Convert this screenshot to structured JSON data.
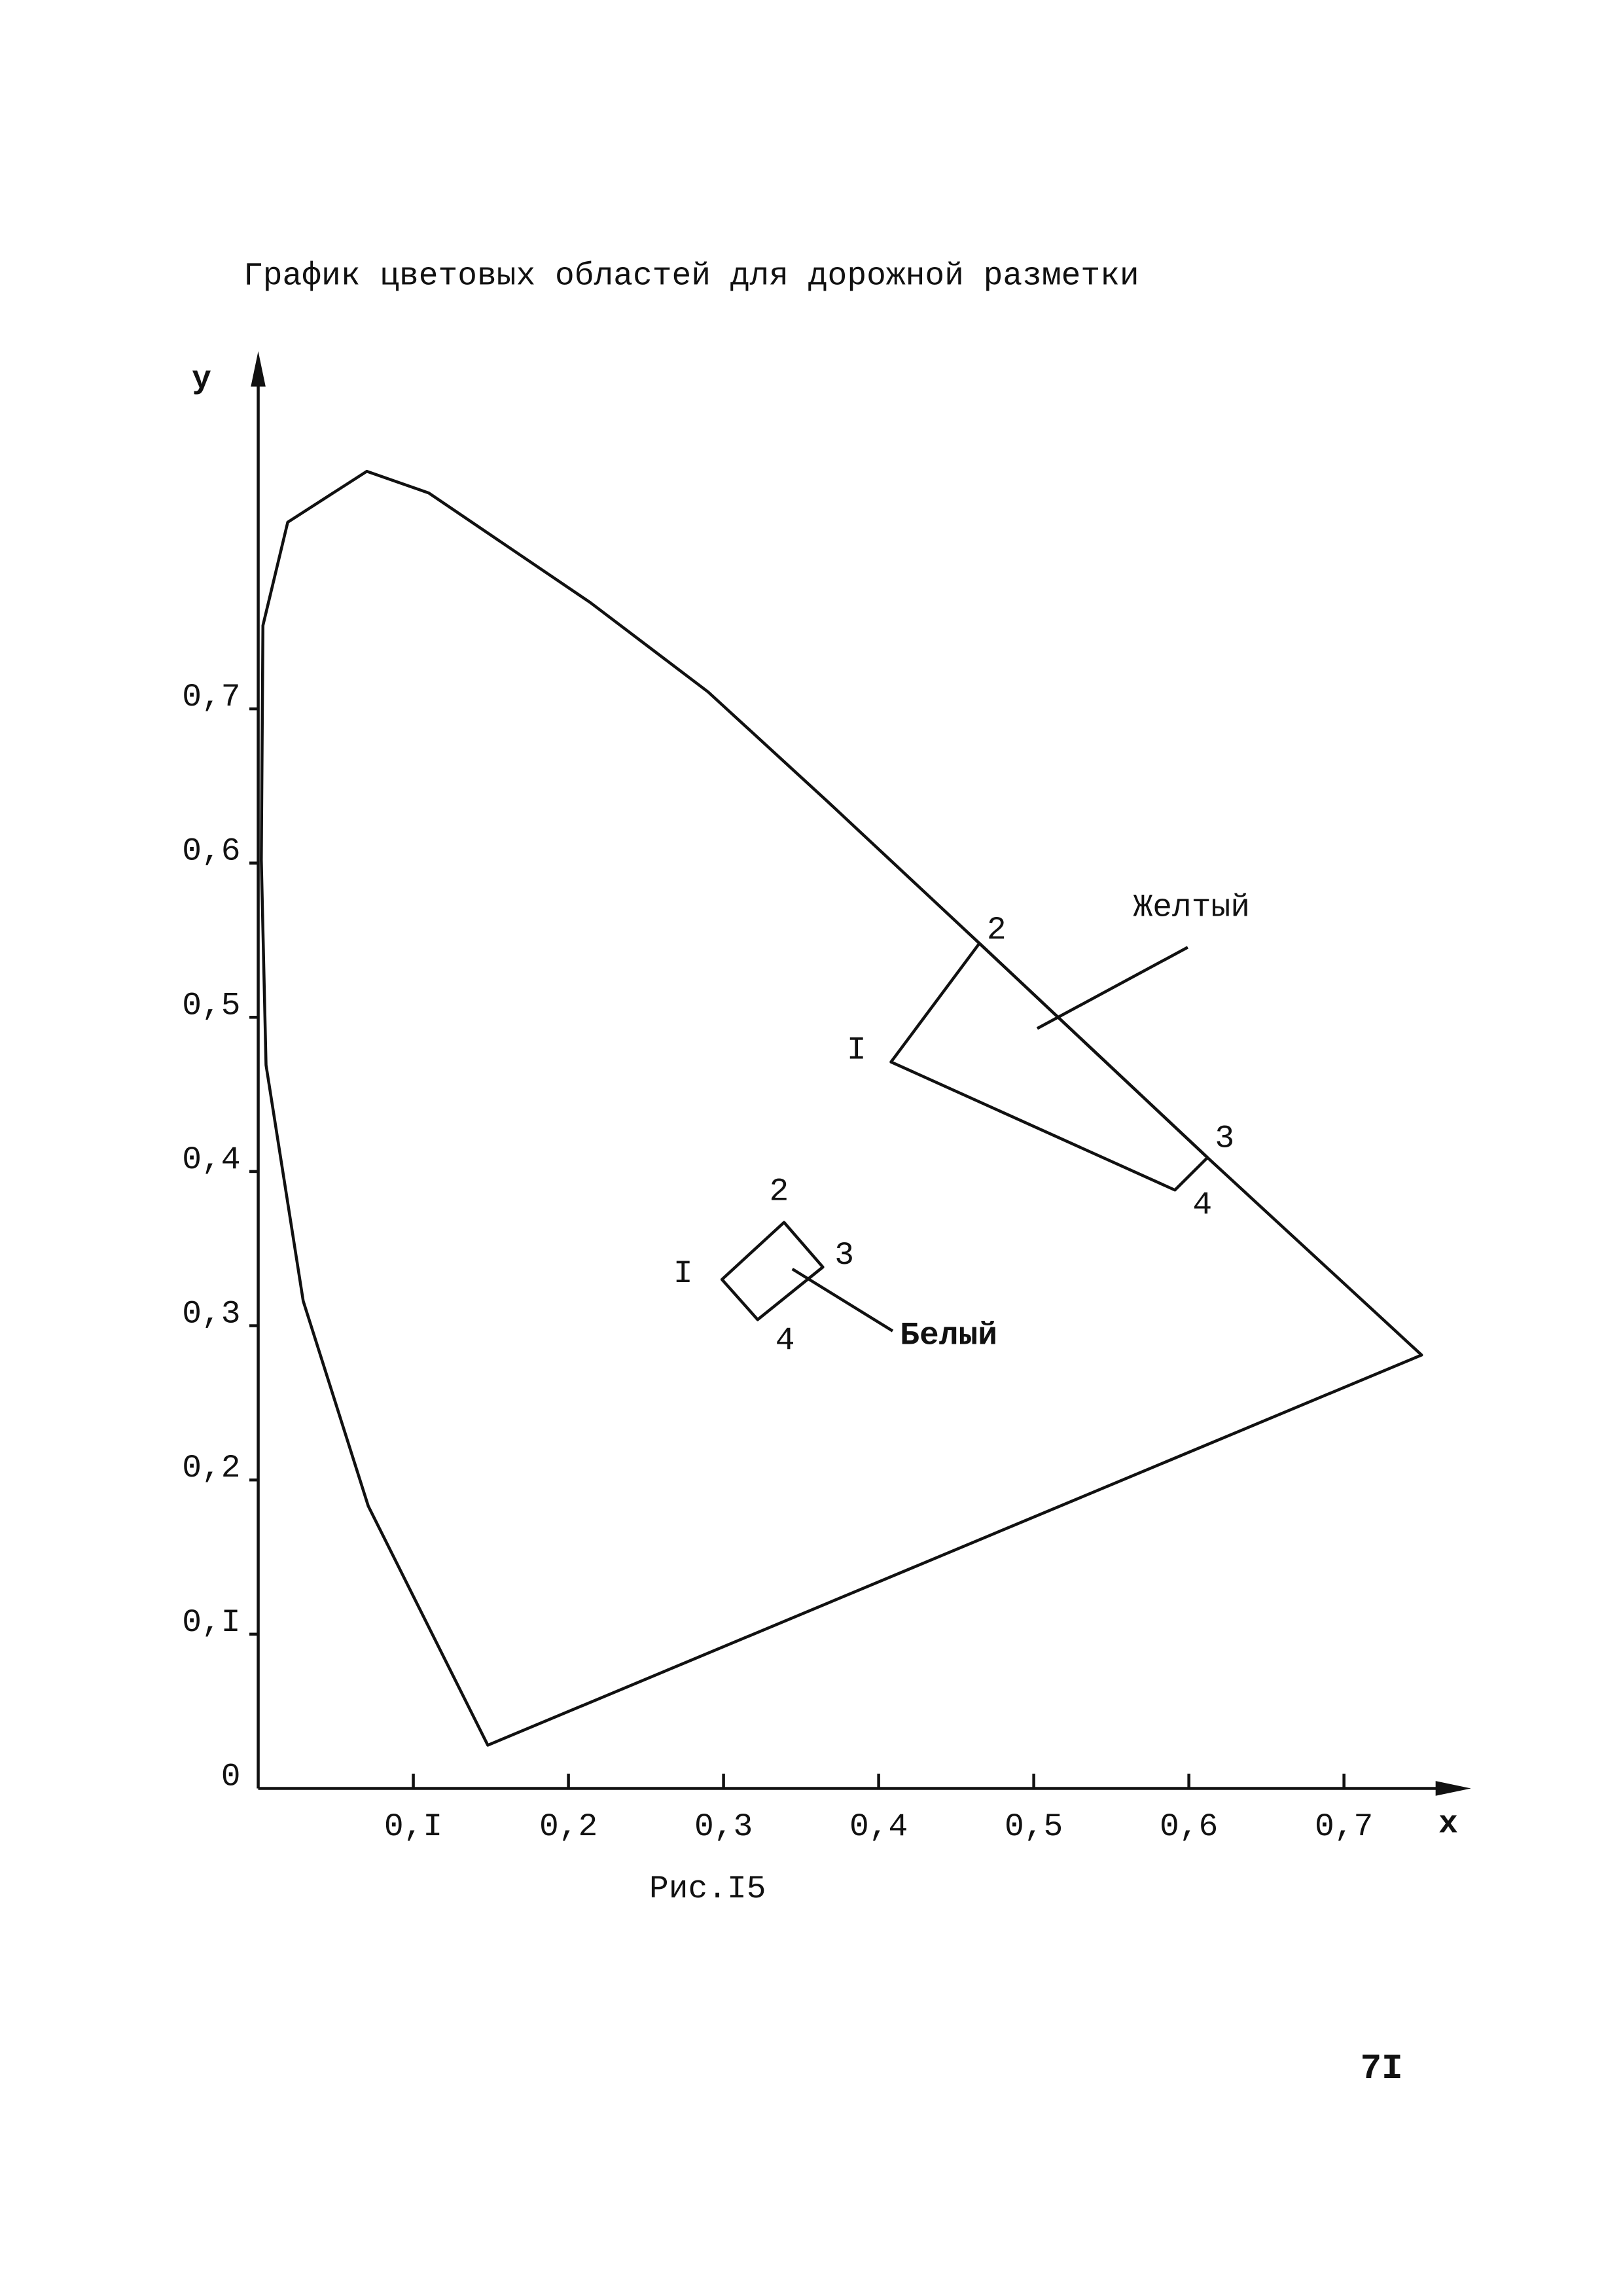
{
  "chart_data": {
    "type": "line",
    "title": "График цветовых областей для дорожной разметки",
    "xlabel": "x",
    "ylabel": "y",
    "caption": "Рис.I5",
    "page_number": "7I",
    "xlim": [
      0,
      0.78
    ],
    "ylim": [
      0,
      0.93
    ],
    "xticks": [
      {
        "value": 0.1,
        "label": "0,I"
      },
      {
        "value": 0.2,
        "label": "0,2"
      },
      {
        "value": 0.3,
        "label": "0,3"
      },
      {
        "value": 0.4,
        "label": "0,4"
      },
      {
        "value": 0.5,
        "label": "0,5"
      },
      {
        "value": 0.6,
        "label": "0,6"
      },
      {
        "value": 0.7,
        "label": "0,7"
      }
    ],
    "yticks": [
      0,
      {
        "value": 0.1,
        "label": "0,I"
      },
      {
        "value": 0.2,
        "label": "0,2"
      },
      {
        "value": 0.3,
        "label": "0,3"
      },
      {
        "value": 0.4,
        "label": "0,4"
      },
      {
        "value": 0.5,
        "label": "0,5"
      },
      {
        "value": 0.6,
        "label": "0,6"
      },
      {
        "value": 0.7,
        "label": "0,7"
      }
    ],
    "series": [
      {
        "color": "#111111",
        "closed": true,
        "x": [
          0.148,
          0.071,
          0.029,
          0.005,
          0.002,
          0.003,
          0.019,
          0.07,
          0.11,
          0.214,
          0.29,
          0.367,
          0.465,
          0.612,
          0.75
        ],
        "values": [
          0.028,
          0.183,
          0.316,
          0.469,
          0.602,
          0.754,
          0.821,
          0.854,
          0.84,
          0.769,
          0.711,
          0.64,
          0.548,
          0.409,
          0.281
        ]
      },
      {
        "name": "Желтый",
        "color": "#111111",
        "closed": true,
        "x": [
          0.408,
          0.465,
          0.612,
          0.591
        ],
        "values": [
          0.471,
          0.548,
          0.409,
          0.388
        ],
        "point_labels": [
          "I",
          "2",
          "3",
          "4"
        ]
      },
      {
        "name": "Белый",
        "color": "#111111",
        "closed": true,
        "x": [
          0.299,
          0.339,
          0.364,
          0.322
        ],
        "values": [
          0.33,
          0.367,
          0.338,
          0.304
        ],
        "point_labels": [
          "I",
          "2",
          "3",
          "4"
        ]
      }
    ]
  }
}
